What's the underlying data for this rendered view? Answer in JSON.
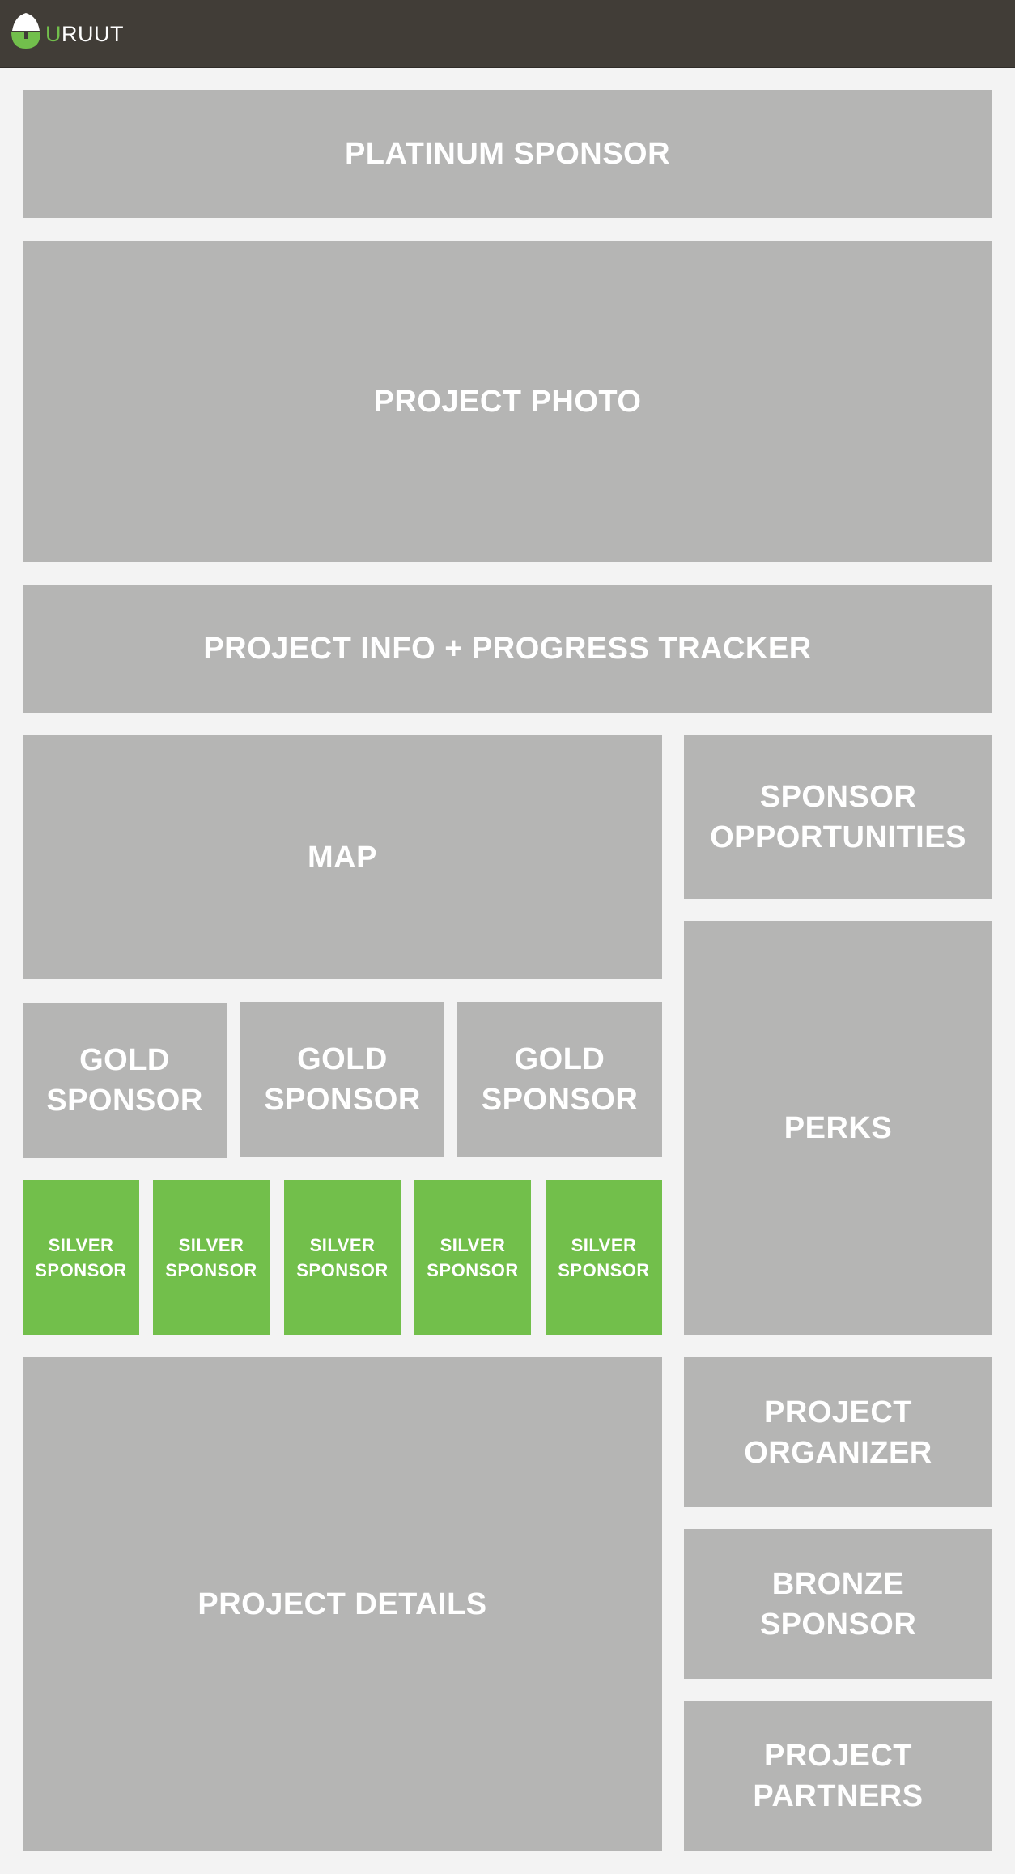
{
  "header": {
    "logo_icon": "acorn-logo-icon",
    "logo_first_letter": "U",
    "logo_rest": "RUUT",
    "accent_color": "#72bf4c",
    "bar_color": "#413d37"
  },
  "blocks": {
    "platinum_sponsor": "PLATINUM SPONSOR",
    "project_photo": "PROJECT PHOTO",
    "project_info": "PROJECT INFO + PROGRESS TRACKER",
    "map": "MAP",
    "sponsor_opportunities": [
      "SPONSOR",
      "OPPORTUNITIES"
    ],
    "perks": "PERKS",
    "gold_sponsors": [
      [
        "GOLD",
        "SPONSOR"
      ],
      [
        "GOLD",
        "SPONSOR"
      ],
      [
        "GOLD",
        "SPONSOR"
      ]
    ],
    "silver_sponsors": [
      [
        "SILVER",
        "SPONSOR"
      ],
      [
        "SILVER",
        "SPONSOR"
      ],
      [
        "SILVER",
        "SPONSOR"
      ],
      [
        "SILVER",
        "SPONSOR"
      ],
      [
        "SILVER",
        "SPONSOR"
      ]
    ],
    "project_details": "PROJECT DETAILS",
    "project_organizer": [
      "PROJECT",
      "ORGANIZER"
    ],
    "bronze_sponsor": [
      "BRONZE",
      "SPONSOR"
    ],
    "project_partners": [
      "PROJECT",
      "PARTNERS"
    ]
  },
  "colors": {
    "placeholder_gray": "#b5b5b4",
    "silver_green": "#72bf4b",
    "background": "#f3f3f3"
  }
}
